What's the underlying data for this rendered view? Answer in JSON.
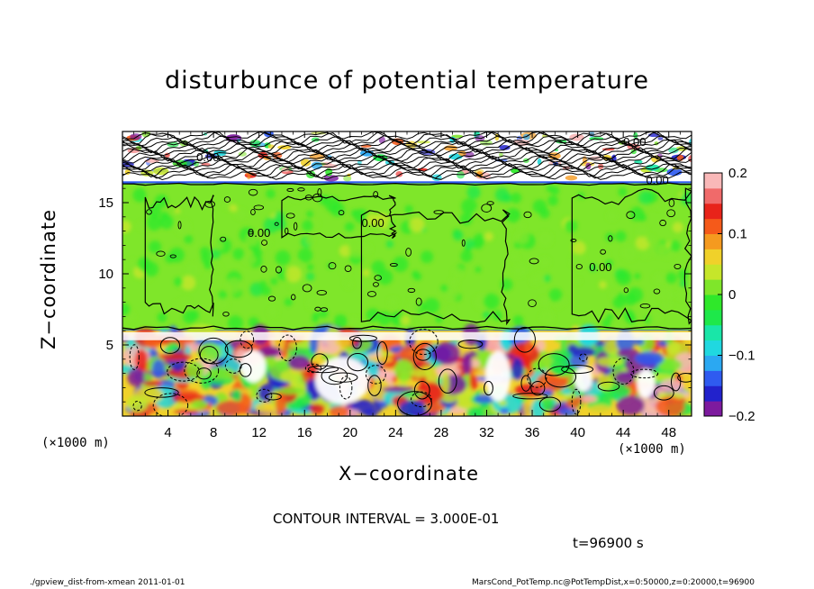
{
  "chart_data": {
    "type": "heatmap",
    "title": "disturbunce of potential temperature",
    "xlabel": "X−coordinate",
    "ylabel": "Z−coordinate",
    "x_unit": "(×1000 m)",
    "x_unit_right": "(×1000 m)",
    "xlim": [
      0,
      50
    ],
    "ylim": [
      0,
      20
    ],
    "x_ticks": [
      4,
      8,
      12,
      16,
      20,
      24,
      28,
      32,
      36,
      40,
      44,
      48
    ],
    "y_ticks": [
      5,
      10,
      15
    ],
    "colorbar": {
      "min": -0.2,
      "max": 0.2,
      "ticks": [
        {
          "value": 0.2,
          "label": "0.2"
        },
        {
          "value": 0.1,
          "label": "0.1"
        },
        {
          "value": 0.0,
          "label": "0"
        },
        {
          "value": -0.1,
          "label": "−0.1"
        },
        {
          "value": -0.2,
          "label": "−0.2"
        }
      ],
      "colors": [
        "#7d1a9e",
        "#2222cc",
        "#2f5bf0",
        "#2ba8f2",
        "#20d8e0",
        "#19e6a8",
        "#1ee84a",
        "#2fe82a",
        "#7fe62a",
        "#c6e62a",
        "#f0d12a",
        "#f59a1f",
        "#f55a1a",
        "#e8231a",
        "#f06a6a",
        "#f9b8b8"
      ]
    },
    "contour_labels": [
      "0.00",
      "0.00",
      "0.00",
      "0.00",
      "0.00",
      "0.00"
    ],
    "layers": [
      {
        "z_range": [
          16.5,
          20
        ],
        "description_value": "mixed"
      },
      {
        "z_range": [
          6,
          16.5
        ],
        "value": 0.0
      },
      {
        "z_range": [
          0,
          6
        ],
        "description_value": "mixed"
      }
    ],
    "dominant_value": 0.0
  },
  "annotations": {
    "contour_interval": "CONTOUR INTERVAL = 3.000E-01",
    "time": "t=96900 s",
    "footer_left": "./gpview_dist-from-xmean   2011-01-01",
    "footer_right": "MarsCond_PotTemp.nc@PotTempDist,x=0:50000,z=0:20000,t=96900"
  }
}
